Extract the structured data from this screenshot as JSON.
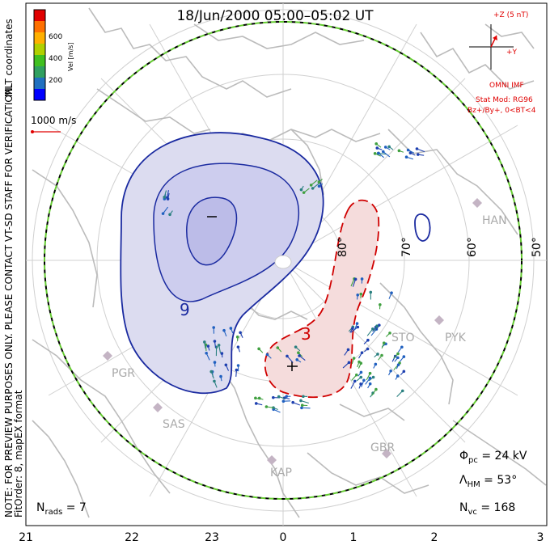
{
  "title": "18/Jun/2000 05:00–05:02 UT",
  "side_note_line1": "NOTE: FOR PREVIEW PURPOSES ONLY. PLEASE CONTACT VT-SD STAFF FOR VERIFICATION.",
  "side_note_line2": "FitOrder: 8, mapEX format",
  "coord_label": "MLT coordinates",
  "colorbar": {
    "unit_label": "Vel [m/s]",
    "ticks": [
      "600",
      "400",
      "200"
    ],
    "colors": [
      "#e00000",
      "#ff7000",
      "#ffb000",
      "#b0d000",
      "#40c020",
      "#30a060",
      "#2070c0",
      "#0000ff"
    ]
  },
  "scale_vector_label": "1000 m/s",
  "imf": {
    "z_label": "+Z (5 nT)",
    "y_label": "+Y",
    "source": "OMNI IMF",
    "stat_mod": "Stat Mod: RG96",
    "condition": "Bz+/By+, 0<BT<4"
  },
  "latitude_labels": [
    "80°",
    "70°",
    "60°",
    "50°"
  ],
  "mlt_labels": [
    "21",
    "22",
    "23",
    "0",
    "1",
    "2",
    "3"
  ],
  "radar_sites": [
    "HAN",
    "STO",
    "PYK",
    "PGR",
    "SAS",
    "KAP",
    "GBR"
  ],
  "contour_labels": {
    "negative": "9",
    "positive": "3"
  },
  "stats": {
    "phi_pc": "24 kV",
    "lambda_hm": "53°",
    "n_vc": "168",
    "n_rads": "7"
  },
  "colors": {
    "negative_cell": "#1a2aa0",
    "negative_fill": "#dcdcf0",
    "positive_cell": "#d00000",
    "positive_fill": "#f5dcdc",
    "coastline": "#bbbbbb",
    "grid": "#d0d0d0",
    "boundary": "#66cc33"
  }
}
